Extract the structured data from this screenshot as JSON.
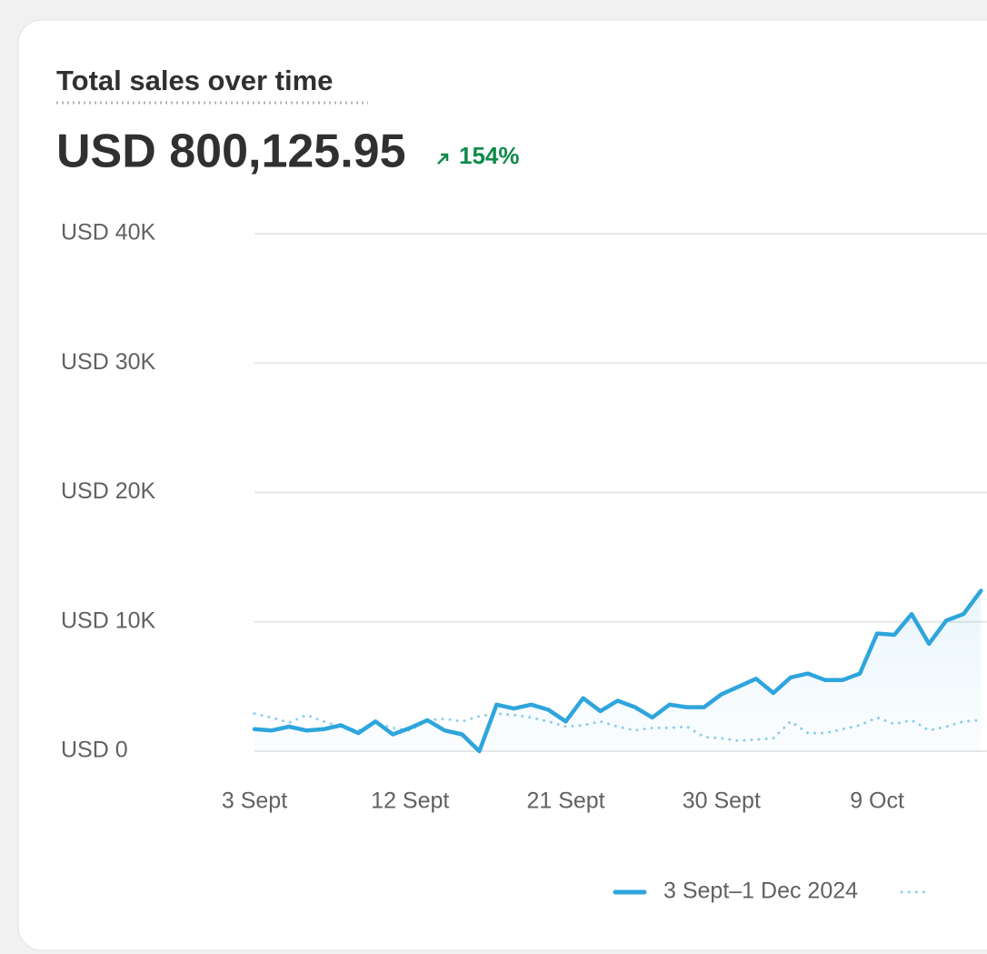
{
  "title": "Total sales over time",
  "headline": {
    "total": "USD 800,125.95",
    "change": "154%"
  },
  "chart_data": {
    "type": "line",
    "categories": [
      "3 Sept",
      null,
      null,
      null,
      null,
      null,
      null,
      null,
      null,
      "12 Sept",
      null,
      null,
      null,
      null,
      null,
      null,
      null,
      null,
      "21 Sept",
      null,
      null,
      null,
      null,
      null,
      null,
      null,
      null,
      "30 Sept",
      null,
      null,
      null,
      null,
      null,
      null,
      null,
      null,
      "9 Oct",
      null,
      null,
      null,
      null,
      null,
      null
    ],
    "series": [
      {
        "name": "3 Sept–1 Dec 2024",
        "color": "#2ea5dc",
        "style": "solid",
        "values": [
          1700,
          1600,
          1900,
          1600,
          1700,
          2000,
          1400,
          2300,
          1300,
          1800,
          2400,
          1600,
          1300,
          0,
          3600,
          3300,
          3600,
          3200,
          2300,
          4100,
          3100,
          3900,
          3400,
          2600,
          3600,
          3400,
          3400,
          4400,
          5000,
          5600,
          4500,
          5700,
          6000,
          5500,
          5500,
          6000,
          9100,
          9000,
          10600,
          8300,
          10100,
          10600,
          12400
        ]
      },
      {
        "color": "#8fd0ee",
        "style": "dotted",
        "values": [
          2900,
          2600,
          2200,
          2800,
          2300,
          1900,
          1600,
          2200,
          1800,
          1600,
          2400,
          2500,
          2300,
          2700,
          2900,
          2800,
          2600,
          2300,
          1900,
          2000,
          2300,
          1900,
          1600,
          1800,
          1800,
          1900,
          1100,
          1000,
          800,
          900,
          1000,
          2300,
          1400,
          1400,
          1700,
          2000,
          2600,
          2100,
          2400,
          1600,
          1900,
          2300,
          2400
        ]
      }
    ],
    "ylim": [
      0,
      40000
    ],
    "yticks": [
      {
        "value": 0,
        "label": "USD 0"
      },
      {
        "value": 10000,
        "label": "USD 10K"
      },
      {
        "value": 20000,
        "label": "USD 20K"
      },
      {
        "value": 30000,
        "label": "USD 30K"
      },
      {
        "value": 40000,
        "label": "USD 40K"
      }
    ],
    "grid": true
  }
}
